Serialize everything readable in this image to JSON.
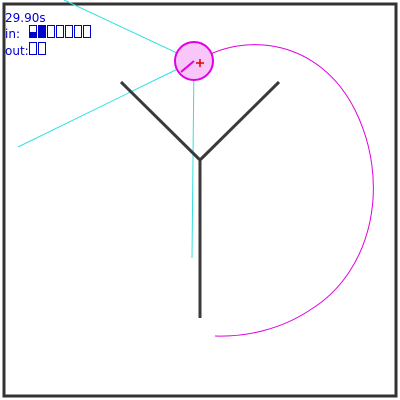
{
  "hud": {
    "timer": "29.90s",
    "in_label": "in:",
    "out_label": "out:",
    "in_values": [
      0.5,
      1.0,
      0.0,
      0.0,
      0.0,
      0.0,
      0.0
    ],
    "out_values": [
      0.0,
      0.0
    ]
  },
  "colors": {
    "frame": "#333333",
    "hud_text": "#0000cc",
    "body": "#3a3a3a",
    "sensor_ray": "#33e0e0",
    "trail": "#e000e0",
    "ball_fill": "#f9c6f9",
    "ball_stroke": "#e000e0",
    "target_marker": "#e00000"
  }
}
